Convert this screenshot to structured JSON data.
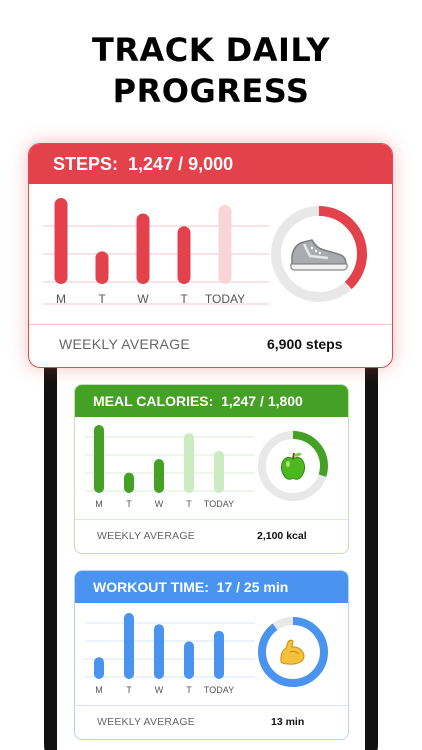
{
  "headline": {
    "line1": "TRACK DAILY",
    "line2": "PROGRESS"
  },
  "colors": {
    "steps": "#e3424c",
    "steps_light": "#f8d6d8",
    "steps_ring_bg": "#e8e8e8",
    "meal": "#44a125",
    "meal_light": "#cdebc2",
    "workout": "#4a94f0",
    "workout_light": "#d5e6fb"
  },
  "cards": {
    "steps": {
      "label": "STEPS:",
      "current": "1,247",
      "separator": "/",
      "goal": "9,000",
      "footer_label": "WEEKLY AVERAGE",
      "footer_value": "6,900 steps",
      "icon": "sneaker-icon",
      "ring_progress": 0.38
    },
    "meal": {
      "label": "MEAL CALORIES:",
      "current": "1,247",
      "separator": "/",
      "goal": "1,800",
      "footer_label": "WEEKLY AVERAGE",
      "footer_value": "2,100 kcal",
      "icon": "apple-icon",
      "ring_progress": 0.3
    },
    "workout": {
      "label": "WORKOUT TIME:",
      "current": "17",
      "separator": "/",
      "goal": "25 min",
      "footer_label": "WEEKLY AVERAGE",
      "footer_value": "13 min",
      "icon": "flexed-biceps-icon",
      "ring_progress": 0.9
    }
  },
  "chart_data": [
    {
      "type": "bar",
      "name": "steps",
      "categories": [
        "M",
        "T",
        "W",
        "T",
        "TODAY"
      ],
      "values": [
        1.0,
        0.38,
        0.82,
        0.67,
        0.92
      ],
      "today_faded": true
    },
    {
      "type": "bar",
      "name": "meal",
      "categories": [
        "M",
        "T",
        "W",
        "T",
        "TODAY"
      ],
      "values": [
        1.0,
        0.3,
        0.5,
        0.88,
        0.62
      ],
      "faded_from_index": 3
    },
    {
      "type": "bar",
      "name": "workout",
      "categories": [
        "M",
        "T",
        "W",
        "T",
        "TODAY"
      ],
      "values": [
        0.33,
        1.0,
        0.83,
        0.57,
        0.73
      ]
    }
  ]
}
